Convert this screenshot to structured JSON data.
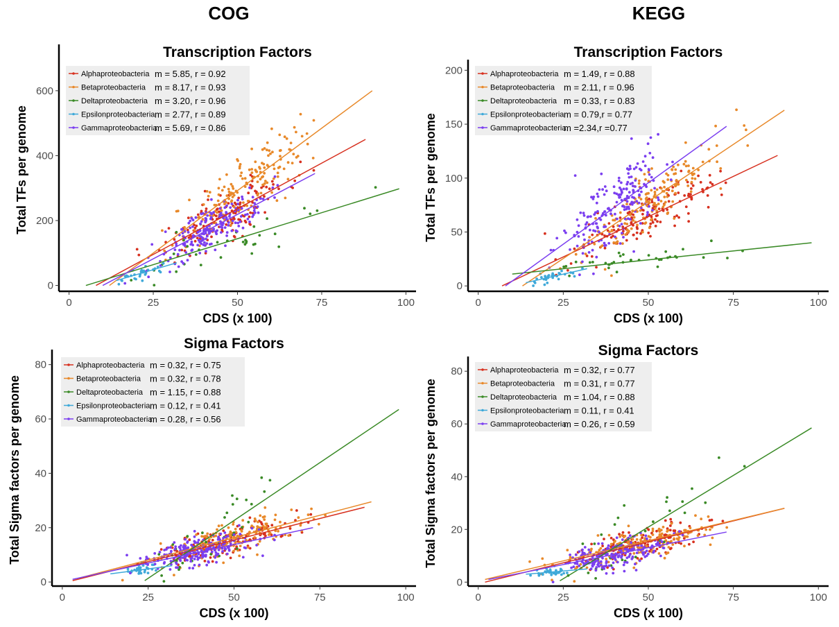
{
  "columns": {
    "left": "COG",
    "right": "KEGG"
  },
  "series_colors": {
    "Alphaproteobacteria": "#d7301f",
    "Betaproteobacteria": "#e8892a",
    "Deltaproteobacteria": "#3a8a26",
    "Epsilonproteobacteria": "#3fa9d9",
    "Gammaproteobacteria": "#7b3ff0"
  },
  "chart_data": [
    {
      "type": "scatter",
      "title": "Transcription Factors",
      "xlabel": "CDS (x 100)",
      "ylabel": "Total TFs per genome",
      "xlim": [
        -3,
        103
      ],
      "ylim": [
        -18,
        730
      ],
      "xticks": [
        0,
        25,
        50,
        75,
        100
      ],
      "yticks": [
        0,
        200,
        400,
        600
      ],
      "legend_position": "top-left",
      "series": [
        {
          "name": "Alphaproteobacteria",
          "stat": "m = 5.85, r = 0.92",
          "fit": [
            [
              8,
              0
            ],
            [
              88,
              450
            ]
          ],
          "center": [
            46,
            230
          ],
          "spread": [
            17,
            80
          ],
          "n": 150
        },
        {
          "name": "Betaproteobacteria",
          "stat": "m = 8.17, r = 0.93",
          "fit": [
            [
              12,
              0
            ],
            [
              90,
              600
            ]
          ],
          "center": [
            52,
            300
          ],
          "spread": [
            17,
            110
          ],
          "n": 170
        },
        {
          "name": "Deltaproteobacteria",
          "stat": "m = 3.20, r = 0.96",
          "fit": [
            [
              5,
              0
            ],
            [
              98,
              298
            ]
          ],
          "center": [
            45,
            140
          ],
          "spread": [
            24,
            90
          ],
          "n": 35
        },
        {
          "name": "Epsilonproteobacteria",
          "stat": "m = 2.77, r = 0.89",
          "fit": [
            [
              14,
              15
            ],
            [
              32,
              70
            ]
          ],
          "center": [
            22,
            40
          ],
          "spread": [
            5,
            18
          ],
          "n": 30
        },
        {
          "name": "Gammaproteobacteria",
          "stat": "m = 5.69, r = 0.86",
          "fit": [
            [
              10,
              0
            ],
            [
              73,
              345
            ]
          ],
          "center": [
            42,
            200
          ],
          "spread": [
            13,
            70
          ],
          "n": 200
        }
      ]
    },
    {
      "type": "scatter",
      "title": "Transcription Factors",
      "xlabel": "CDS (x 100)",
      "ylabel": "Total TFs per genome",
      "xlim": [
        -3,
        103
      ],
      "ylim": [
        -5,
        206
      ],
      "xticks": [
        0,
        25,
        50,
        75,
        100
      ],
      "yticks": [
        0,
        50,
        100,
        150,
        200
      ],
      "legend_position": "top-left",
      "series": [
        {
          "name": "Alphaproteobacteria",
          "stat": "m = 1.49, r = 0.88",
          "fit": [
            [
              7,
              0
            ],
            [
              88,
              121
            ]
          ],
          "center": [
            48,
            60
          ],
          "spread": [
            17,
            25
          ],
          "n": 150
        },
        {
          "name": "Betaproteobacteria",
          "stat": "m = 2.11, r = 0.96",
          "fit": [
            [
              13,
              0
            ],
            [
              90,
              163
            ]
          ],
          "center": [
            52,
            80
          ],
          "spread": [
            17,
            32
          ],
          "n": 170
        },
        {
          "name": "Deltaproteobacteria",
          "stat": "m = 0.33, r = 0.83",
          "fit": [
            [
              10,
              11
            ],
            [
              98,
              40
            ]
          ],
          "center": [
            45,
            25
          ],
          "spread": [
            22,
            10
          ],
          "n": 35
        },
        {
          "name": "Epsilonproteobacteria",
          "stat": "m = 0.79,r = 0.77",
          "fit": [
            [
              14,
              3
            ],
            [
              32,
              16
            ]
          ],
          "center": [
            22,
            9
          ],
          "spread": [
            5,
            5
          ],
          "n": 30
        },
        {
          "name": "Gammaproteobacteria",
          "stat": "m =2.34,r =0.77",
          "fit": [
            [
              8,
              0
            ],
            [
              73,
              148
            ]
          ],
          "center": [
            40,
            75
          ],
          "spread": [
            13,
            38
          ],
          "n": 200
        }
      ]
    },
    {
      "type": "scatter",
      "title": "Sigma Factors",
      "xlabel": "CDS (x 100)",
      "ylabel": "Total Sigma factors per genome",
      "xlim": [
        -3,
        103
      ],
      "ylim": [
        -1.5,
        84
      ],
      "xticks": [
        0,
        25,
        50,
        75,
        100
      ],
      "yticks": [
        0,
        20,
        40,
        60,
        80
      ],
      "legend_position": "top-left",
      "series": [
        {
          "name": "Alphaproteobacteria",
          "stat": "m = 0.32, r = 0.75",
          "fit": [
            [
              3,
              0.5
            ],
            [
              88,
              27.5
            ]
          ],
          "center": [
            47,
            14
          ],
          "spread": [
            17,
            6
          ],
          "n": 150
        },
        {
          "name": "Betaproteobacteria",
          "stat": "m = 0.32, r = 0.78",
          "fit": [
            [
              5,
              1.5
            ],
            [
              90,
              29.5
            ]
          ],
          "center": [
            50,
            15
          ],
          "spread": [
            18,
            7
          ],
          "n": 170
        },
        {
          "name": "Deltaproteobacteria",
          "stat": "m = 1.15, r = 0.88",
          "fit": [
            [
              24,
              0.5
            ],
            [
              98,
              63.5
            ]
          ],
          "center": [
            45,
            20
          ],
          "spread": [
            20,
            12
          ],
          "n": 35
        },
        {
          "name": "Epsilonproteobacteria",
          "stat": "m = 0.12, r = 0.41",
          "fit": [
            [
              14,
              3
            ],
            [
              32,
              6
            ]
          ],
          "center": [
            22,
            4
          ],
          "spread": [
            5,
            2
          ],
          "n": 30
        },
        {
          "name": "Gammaproteobacteria",
          "stat": "m = 0.28, r = 0.56",
          "fit": [
            [
              3,
              1
            ],
            [
              73,
              20
            ]
          ],
          "center": [
            40,
            12
          ],
          "spread": [
            13,
            6
          ],
          "n": 200
        }
      ]
    },
    {
      "type": "scatter",
      "title": "Sigma Factors",
      "xlabel": "CDS (x 100)",
      "ylabel": "Total Sigma factors per genome",
      "xlim": [
        -3,
        103
      ],
      "ylim": [
        -1.5,
        84
      ],
      "xticks": [
        0,
        25,
        50,
        75,
        100
      ],
      "yticks": [
        0,
        20,
        40,
        60,
        80
      ],
      "legend_position": "top-left",
      "series": [
        {
          "name": "Alphaproteobacteria",
          "stat": "m = 0.32, r = 0.77",
          "fit": [
            [
              2,
              0
            ],
            [
              90,
              28
            ]
          ],
          "center": [
            47,
            14
          ],
          "spread": [
            17,
            6
          ],
          "n": 150
        },
        {
          "name": "Betaproteobacteria",
          "stat": "m = 0.31, r = 0.77",
          "fit": [
            [
              2,
              1
            ],
            [
              90,
              28
            ]
          ],
          "center": [
            50,
            15
          ],
          "spread": [
            18,
            7
          ],
          "n": 170
        },
        {
          "name": "Deltaproteobacteria",
          "stat": "m = 1.04, r = 0.88",
          "fit": [
            [
              24,
              0.5
            ],
            [
              98,
              58.5
            ]
          ],
          "center": [
            45,
            20
          ],
          "spread": [
            20,
            12
          ],
          "n": 35
        },
        {
          "name": "Epsilonproteobacteria",
          "stat": "m = 0.11, r = 0.41",
          "fit": [
            [
              14,
              3
            ],
            [
              32,
              5
            ]
          ],
          "center": [
            22,
            4
          ],
          "spread": [
            5,
            2
          ],
          "n": 30
        },
        {
          "name": "Gammaproteobacteria",
          "stat": "m = 0.26, r = 0.59",
          "fit": [
            [
              3,
              1
            ],
            [
              73,
              19
            ]
          ],
          "center": [
            40,
            12
          ],
          "spread": [
            13,
            6
          ],
          "n": 200
        }
      ]
    }
  ]
}
